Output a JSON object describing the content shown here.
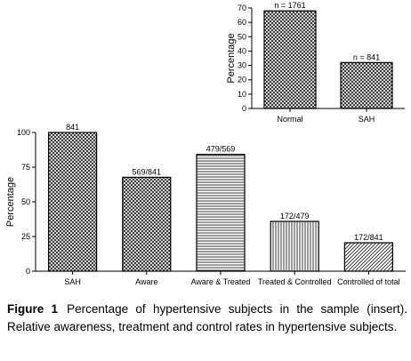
{
  "chart_data": [
    {
      "type": "bar",
      "role": "inset",
      "categories": [
        "Normal",
        "SAH"
      ],
      "values": [
        68,
        32
      ],
      "bar_labels": [
        "n = 1761",
        "n = 841"
      ],
      "patterns": [
        "check",
        "check"
      ],
      "ylabel": "Percentage",
      "ylim": [
        0,
        70
      ],
      "yticks": [
        0,
        10,
        20,
        30,
        40,
        50,
        60,
        70
      ],
      "grid": false
    },
    {
      "type": "bar",
      "role": "main",
      "categories": [
        "SAH",
        "Aware",
        "Aware & Treated",
        "Treated & Controlled",
        "Controlled of total"
      ],
      "values": [
        100,
        67.7,
        84.2,
        35.9,
        20.5
      ],
      "bar_labels": [
        "841",
        "569/841",
        "479/569",
        "172/479",
        "172/841"
      ],
      "patterns": [
        "check",
        "check",
        "hlines",
        "vlines",
        "diag"
      ],
      "ylabel": "Percentage",
      "ylim": [
        0,
        100
      ],
      "yticks": [
        0,
        25,
        50,
        75,
        100
      ],
      "grid": false
    }
  ],
  "caption": {
    "label": "Figure 1",
    "text": "Percentage of hypertensive subjects in the sample (insert). Relative awareness, treatment and control rates in hypertensive subjects."
  }
}
